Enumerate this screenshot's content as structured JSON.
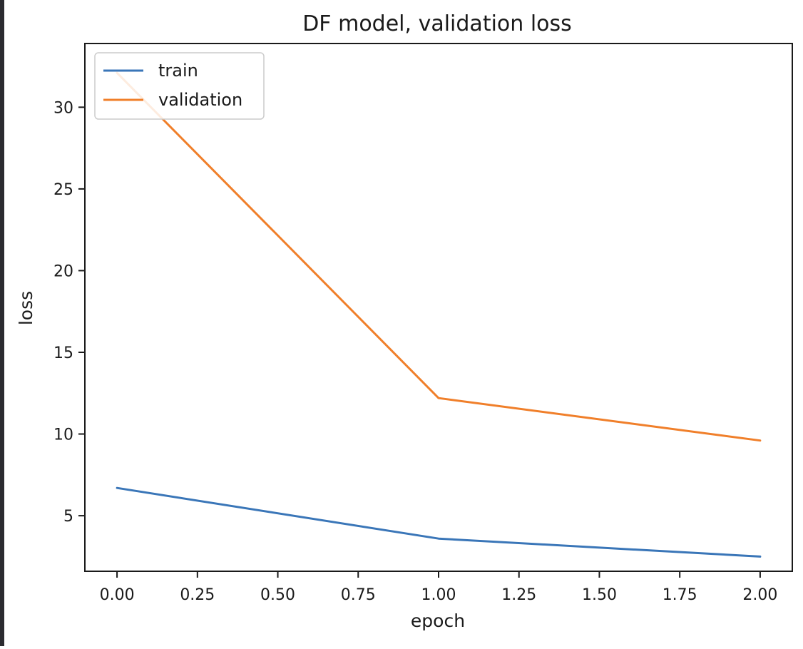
{
  "chart_data": {
    "type": "line",
    "title": "DF model, validation loss",
    "xlabel": "epoch",
    "ylabel": "loss",
    "xlim": [
      -0.1,
      2.1
    ],
    "ylim": [
      1.6,
      33.9
    ],
    "xticks": [
      0.0,
      0.25,
      0.5,
      0.75,
      1.0,
      1.25,
      1.5,
      1.75,
      2.0
    ],
    "xtick_labels": [
      "0.00",
      "0.25",
      "0.50",
      "0.75",
      "1.00",
      "1.25",
      "1.50",
      "1.75",
      "2.00"
    ],
    "yticks": [
      5,
      10,
      15,
      20,
      25,
      30
    ],
    "ytick_labels": [
      "5",
      "10",
      "15",
      "20",
      "25",
      "30"
    ],
    "grid": false,
    "legend_position": "upper left",
    "series": [
      {
        "name": "train",
        "color": "#3a76b8",
        "x": [
          0,
          1,
          2
        ],
        "y": [
          6.7,
          3.6,
          2.5
        ]
      },
      {
        "name": "validation",
        "color": "#f07f2a",
        "x": [
          0,
          1,
          2
        ],
        "y": [
          32.1,
          12.2,
          9.6
        ]
      }
    ]
  }
}
